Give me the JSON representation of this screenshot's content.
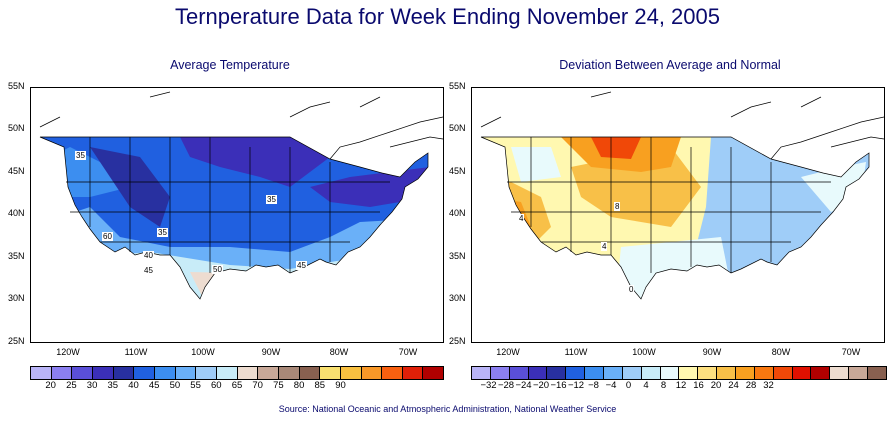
{
  "title": "Ternperature Data for Week Ending November 24, 2005",
  "left_map": {
    "subtitle": "Average Temperature",
    "lat_labels": [
      "55N",
      "50N",
      "45N",
      "40N",
      "35N",
      "30N",
      "25N"
    ],
    "lon_labels": [
      "120W",
      "110W",
      "100W",
      "90W",
      "80W",
      "70W"
    ],
    "contour_labels": [
      "35",
      "35",
      "35",
      "40",
      "45",
      "50",
      "45",
      "60"
    ],
    "colorbar": {
      "colors": [
        "#b9b4f7",
        "#8b7ff0",
        "#5a4fd8",
        "#3b2fb8",
        "#2830a0",
        "#2060e0",
        "#3c8ef0",
        "#6ab0f8",
        "#9fcdf8",
        "#c8ecf8",
        "#eddcd0",
        "#c8a898",
        "#a88878",
        "#886050",
        "#f8e070",
        "#f8c040",
        "#f89828",
        "#f86010",
        "#e02008",
        "#b00000"
      ],
      "ticks": [
        "20",
        "25",
        "30",
        "35",
        "40",
        "45",
        "50",
        "55",
        "60",
        "65",
        "70",
        "75",
        "80",
        "85",
        "90"
      ]
    }
  },
  "right_map": {
    "subtitle": "Deviation Between Average and Normal",
    "lat_labels": [
      "55N",
      "50N",
      "45N",
      "40N",
      "35N",
      "30N",
      "25N"
    ],
    "lon_labels": [
      "120W",
      "110W",
      "100W",
      "90W",
      "80W",
      "70W"
    ],
    "contour_labels": [
      "4",
      "8",
      "4",
      "0"
    ],
    "colorbar": {
      "colors": [
        "#b9b4f7",
        "#8b7ff0",
        "#5a4fd8",
        "#3b2fb8",
        "#2830a0",
        "#2060e0",
        "#3c8ef0",
        "#6ab0f8",
        "#9fcdf8",
        "#c8ecf8",
        "#e8fafc",
        "#fff8b0",
        "#fde080",
        "#f8c048",
        "#f8a020",
        "#f87810",
        "#f04808",
        "#e01000",
        "#b00000",
        "#eddcd0",
        "#c8a898",
        "#886050"
      ],
      "ticks": [
        "−32",
        "−28",
        "−24",
        "−20",
        "−16",
        "−12",
        "−8",
        "−4",
        "0",
        "4",
        "8",
        "12",
        "16",
        "20",
        "24",
        "28",
        "32"
      ]
    }
  },
  "source": "Source:  National Oceanic and Atmospheric Administration, National Weather Service"
}
